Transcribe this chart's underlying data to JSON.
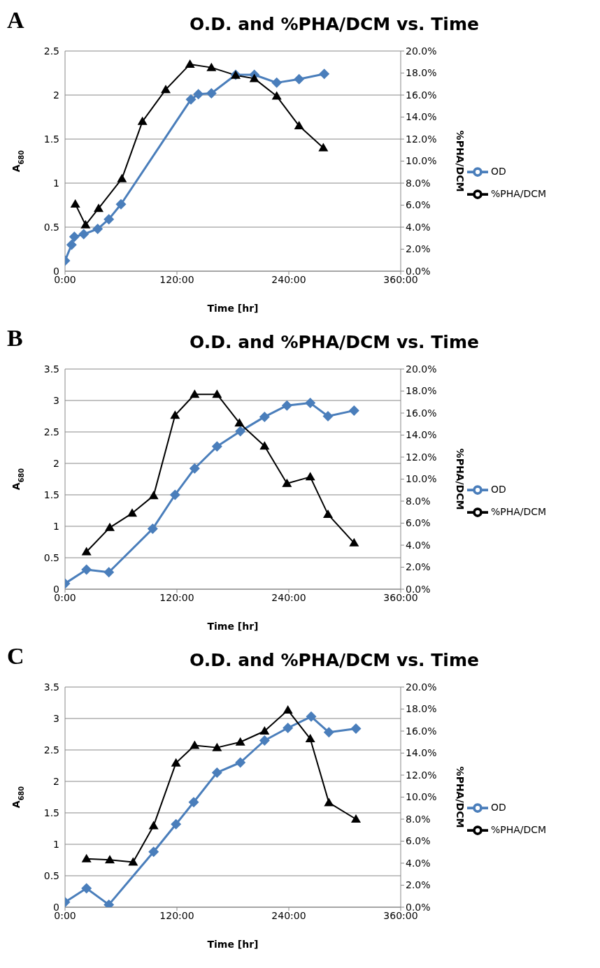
{
  "chart_data": [
    {
      "type": "line",
      "title": "O.D. and %PHA/DCM vs. Time",
      "annotations": [
        "A"
      ],
      "xlabel": "Time [hr]",
      "ylabel": "A$_{680}$",
      "y2label": "%PHA/DCM",
      "xlim": [
        0,
        360
      ],
      "xticks": [
        {
          "value": 0,
          "label": "0:00"
        },
        {
          "value": 120,
          "label": "120:00"
        },
        {
          "value": 240,
          "label": "240:00"
        },
        {
          "value": 360,
          "label": "360:00"
        }
      ],
      "ylim": [
        0,
        2.5
      ],
      "yticks": [
        0,
        0.5,
        1,
        1.5,
        2,
        2.5
      ],
      "y2lim": [
        0,
        20
      ],
      "y2ticks": [
        {
          "value": 0,
          "label": "0.0%"
        },
        {
          "value": 2,
          "label": "2.0%"
        },
        {
          "value": 4,
          "label": "4.0%"
        },
        {
          "value": 6,
          "label": "6.0%"
        },
        {
          "value": 8,
          "label": "8.0%"
        },
        {
          "value": 10,
          "label": "10.0%"
        },
        {
          "value": 12,
          "label": "12.0%"
        },
        {
          "value": 14,
          "label": "14.0%"
        },
        {
          "value": 16,
          "label": "16.0%"
        },
        {
          "value": 18,
          "label": "18.0%"
        },
        {
          "value": 20,
          "label": "20.0%"
        }
      ],
      "grid": "y",
      "legend": "right",
      "series": [
        {
          "name": "OD",
          "color": "#4a7ebb",
          "marker": "diamond",
          "x": [
            0,
            7,
            10,
            20,
            35,
            47,
            60,
            135,
            143,
            157,
            183,
            203,
            227,
            251,
            278
          ],
          "values": [
            0.12,
            0.3,
            0.39,
            0.42,
            0.48,
            0.59,
            0.76,
            1.95,
            2.01,
            2.02,
            2.23,
            2.23,
            2.14,
            2.18,
            2.24
          ]
        },
        {
          "name": "%PHA/DCM",
          "color": "#000000",
          "marker": "triangle",
          "axis": "y2",
          "x": [
            11,
            22,
            36,
            61,
            83,
            108,
            134,
            157,
            183,
            203,
            227,
            251,
            277
          ],
          "values": [
            6.1,
            4.2,
            5.7,
            8.4,
            13.6,
            16.5,
            18.8,
            18.5,
            17.8,
            17.5,
            15.9,
            13.2,
            11.2
          ]
        }
      ]
    },
    {
      "type": "line",
      "title": "O.D. and %PHA/DCM vs. Time",
      "annotations": [
        "B"
      ],
      "xlabel": "Time [hr]",
      "ylabel": "A$_{680}$",
      "y2label": "%PHA/DCM",
      "xlim": [
        0,
        360
      ],
      "xticks": [
        {
          "value": 0,
          "label": "0:00"
        },
        {
          "value": 120,
          "label": "120:00"
        },
        {
          "value": 240,
          "label": "240:00"
        },
        {
          "value": 360,
          "label": "360:00"
        }
      ],
      "ylim": [
        0,
        3.5
      ],
      "yticks": [
        0,
        0.5,
        1,
        1.5,
        2,
        2.5,
        3,
        3.5
      ],
      "y2lim": [
        0,
        20
      ],
      "y2ticks": [
        {
          "value": 0,
          "label": "0.0%"
        },
        {
          "value": 2,
          "label": "2.0%"
        },
        {
          "value": 4,
          "label": "4.0%"
        },
        {
          "value": 6,
          "label": "6.0%"
        },
        {
          "value": 8,
          "label": "8.0%"
        },
        {
          "value": 10,
          "label": "10.0%"
        },
        {
          "value": 12,
          "label": "12.0%"
        },
        {
          "value": 14,
          "label": "14.0%"
        },
        {
          "value": 16,
          "label": "16.0%"
        },
        {
          "value": 18,
          "label": "18.0%"
        },
        {
          "value": 20,
          "label": "20.0%"
        }
      ],
      "grid": "y",
      "legend": "right",
      "series": [
        {
          "name": "OD",
          "color": "#4a7ebb",
          "marker": "diamond",
          "x": [
            0,
            23,
            47,
            94,
            118,
            139,
            163,
            188,
            214,
            238,
            263,
            282,
            310
          ],
          "values": [
            0.09,
            0.31,
            0.27,
            0.96,
            1.5,
            1.92,
            2.27,
            2.51,
            2.74,
            2.92,
            2.96,
            2.75,
            2.84
          ]
        },
        {
          "name": "%PHA/DCM",
          "color": "#000000",
          "marker": "triangle",
          "axis": "y2",
          "x": [
            23,
            48,
            72,
            95,
            118,
            139,
            163,
            187,
            214,
            238,
            263,
            282,
            310
          ],
          "values": [
            3.4,
            5.6,
            6.9,
            8.5,
            15.8,
            17.7,
            17.7,
            15.1,
            13.0,
            9.6,
            10.2,
            6.8,
            4.2
          ]
        }
      ]
    },
    {
      "type": "line",
      "title": "O.D. and %PHA/DCM vs. Time",
      "annotations": [
        "C"
      ],
      "xlabel": "Time [hr]",
      "ylabel": "A$_{680}$",
      "y2label": "%PHA/DCM",
      "xlim": [
        0,
        360
      ],
      "xticks": [
        {
          "value": 0,
          "label": "0:00"
        },
        {
          "value": 120,
          "label": "120:00"
        },
        {
          "value": 240,
          "label": "240:00"
        },
        {
          "value": 360,
          "label": "360:00"
        }
      ],
      "ylim": [
        0,
        3.5
      ],
      "yticks": [
        0,
        0.5,
        1,
        1.5,
        2,
        2.5,
        3,
        3.5
      ],
      "y2lim": [
        0,
        20
      ],
      "y2ticks": [
        {
          "value": 0,
          "label": "0.0%"
        },
        {
          "value": 2,
          "label": "2.0%"
        },
        {
          "value": 4,
          "label": "4.0%"
        },
        {
          "value": 6,
          "label": "6.0%"
        },
        {
          "value": 8,
          "label": "8.0%"
        },
        {
          "value": 10,
          "label": "10.0%"
        },
        {
          "value": 12,
          "label": "12.0%"
        },
        {
          "value": 14,
          "label": "14.0%"
        },
        {
          "value": 16,
          "label": "16.0%"
        },
        {
          "value": 18,
          "label": "18.0%"
        },
        {
          "value": 20,
          "label": "20.0%"
        }
      ],
      "grid": "y",
      "legend": "right",
      "series": [
        {
          "name": "OD",
          "color": "#4a7ebb",
          "marker": "diamond",
          "x": [
            0,
            23,
            47,
            95,
            119,
            138,
            163,
            188,
            214,
            239,
            264,
            283,
            312
          ],
          "values": [
            0.08,
            0.3,
            0.04,
            0.88,
            1.32,
            1.67,
            2.14,
            2.3,
            2.65,
            2.85,
            3.03,
            2.78,
            2.84
          ]
        },
        {
          "name": "%PHA/DCM",
          "color": "#000000",
          "marker": "triangle",
          "axis": "y2",
          "x": [
            23,
            48,
            73,
            95,
            119,
            139,
            163,
            188,
            214,
            239,
            263,
            283,
            312
          ],
          "values": [
            4.4,
            4.3,
            4.1,
            7.4,
            13.1,
            14.7,
            14.5,
            15.0,
            16.0,
            17.9,
            15.3,
            9.5,
            8.0
          ]
        }
      ]
    }
  ]
}
